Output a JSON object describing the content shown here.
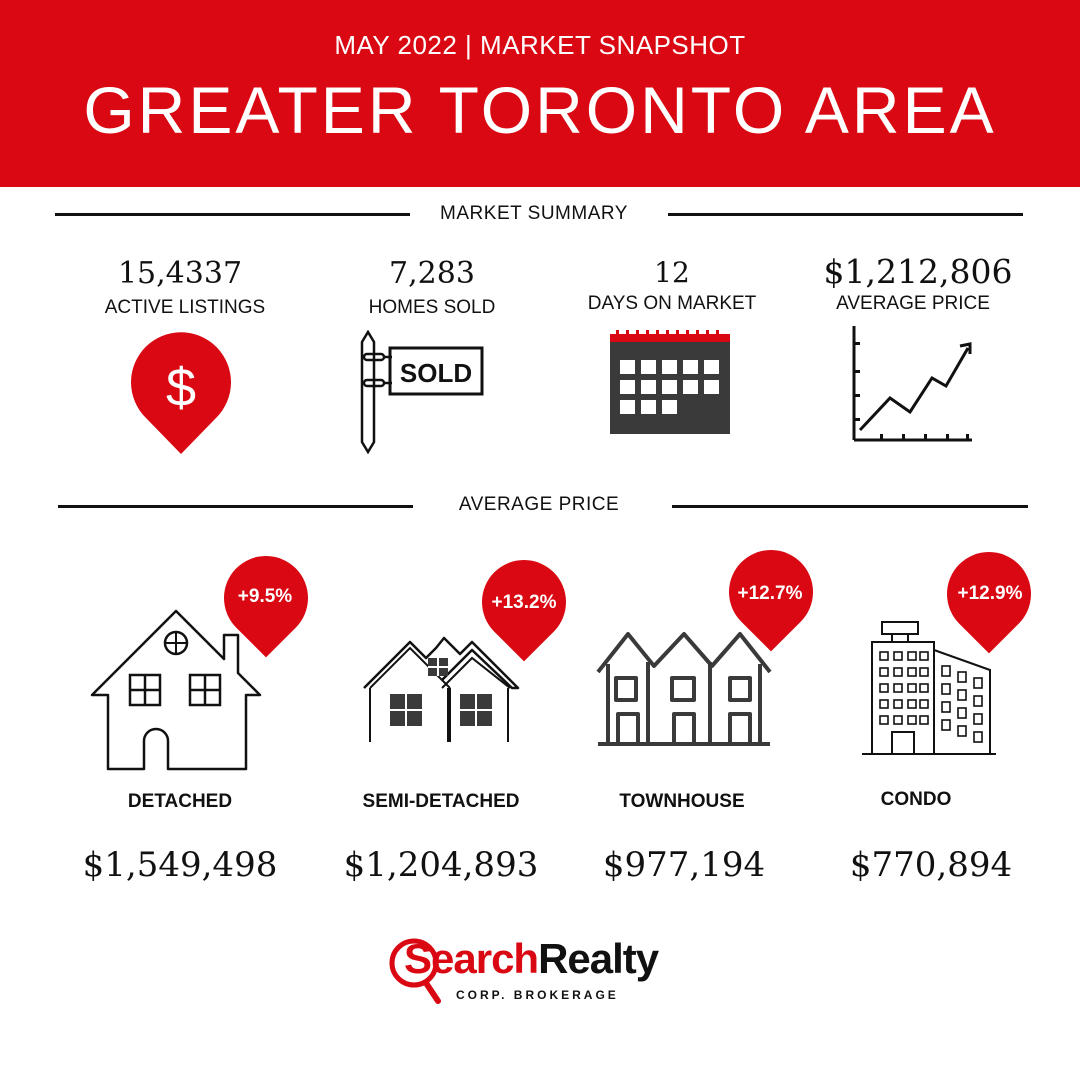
{
  "header": {
    "subtitle": "MAY 2022 | MARKET SNAPSHOT",
    "title": "GREATER TORONTO AREA",
    "color": "#d90812"
  },
  "market_summary": {
    "label": "MARKET SUMMARY",
    "stats": [
      {
        "value": "15,4337",
        "label": "ACTIVE LISTINGS",
        "icon": "dollar-pin-icon"
      },
      {
        "value": "7,283",
        "label": "HOMES SOLD",
        "icon": "sold-sign-icon",
        "sign_text": "SOLD"
      },
      {
        "value": "12",
        "label": "DAYS ON MARKET",
        "icon": "calendar-icon"
      },
      {
        "value": "$1,212,806",
        "label": "AVERAGE PRICE",
        "icon": "line-chart-icon"
      }
    ],
    "dollar_symbol": "$"
  },
  "average_price": {
    "label": "AVERAGE PRICE",
    "types": [
      {
        "name": "DETACHED",
        "price": "$1,549,498",
        "change": "+9.5%",
        "icon": "detached-house-icon"
      },
      {
        "name": "SEMI-DETACHED",
        "price": "$1,204,893",
        "change": "+13.2%",
        "icon": "semi-detached-house-icon"
      },
      {
        "name": "TOWNHOUSE",
        "price": "$977,194",
        "change": "+12.7%",
        "icon": "townhouse-icon"
      },
      {
        "name": "CONDO",
        "price": "$770,894",
        "change": "+12.9%",
        "icon": "condo-building-icon"
      }
    ]
  },
  "logo": {
    "part1": "Search",
    "part2": "Realty",
    "sub": "CORP. BROKERAGE"
  }
}
